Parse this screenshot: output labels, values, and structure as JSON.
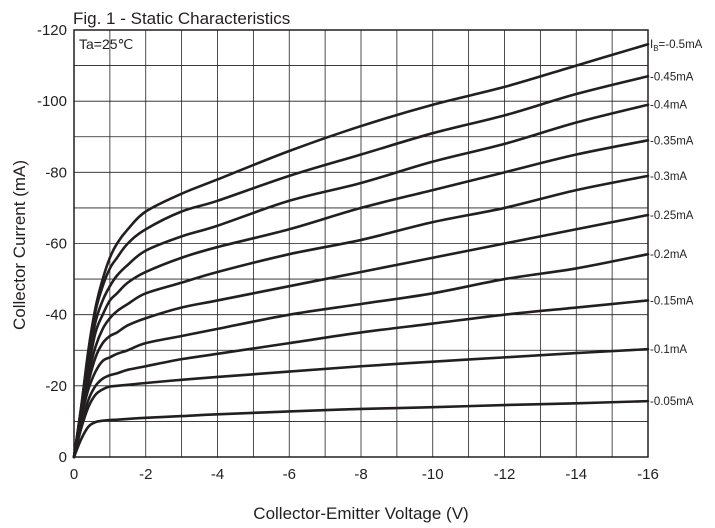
{
  "chart_data": {
    "type": "line",
    "title": "Fig. 1 - Static Characteristics",
    "xlabel": "Collector-Emitter Voltage (V)",
    "ylabel": "Collector  Current (mA)",
    "annotation": "Ta=25℃",
    "xlim": [
      0,
      -16
    ],
    "ylim": [
      0,
      -120
    ],
    "x_ticks": [
      0,
      -2,
      -4,
      -6,
      -8,
      -10,
      -12,
      -14,
      -16
    ],
    "y_ticks": [
      0,
      -20,
      -40,
      -60,
      -80,
      -100,
      -120
    ],
    "grid": true,
    "series": [
      {
        "name": "IB=-0.5mA",
        "label_main": "I",
        "label_sub": "B",
        "label_rest": "=-0.5mA",
        "x": [
          0,
          -0.2,
          -0.4,
          -0.6,
          -0.8,
          -1,
          -1.2,
          -1.5,
          -2,
          -3,
          -4,
          -6,
          -8,
          -10,
          -12,
          -14,
          -16
        ],
        "y": [
          0,
          -14,
          -30,
          -42,
          -50,
          -56,
          -60,
          -64,
          -69,
          -74,
          -78,
          -86,
          -93,
          -99,
          -104,
          -110,
          -116
        ]
      },
      {
        "name": "-0.45mA",
        "x": [
          0,
          -0.2,
          -0.4,
          -0.6,
          -0.8,
          -1,
          -1.2,
          -1.5,
          -2,
          -3,
          -4,
          -6,
          -8,
          -10,
          -12,
          -14,
          -16
        ],
        "y": [
          0,
          -14,
          -29,
          -41,
          -48,
          -53,
          -56,
          -60,
          -64,
          -69,
          -72,
          -79,
          -85,
          -91,
          -96,
          -102,
          -107
        ]
      },
      {
        "name": "-0.4mA",
        "x": [
          0,
          -0.2,
          -0.4,
          -0.6,
          -0.8,
          -1,
          -1.2,
          -1.5,
          -2,
          -3,
          -4,
          -6,
          -8,
          -10,
          -12,
          -14,
          -16
        ],
        "y": [
          0,
          -13,
          -27,
          -38,
          -44,
          -48,
          -51,
          -54,
          -58,
          -62,
          -65,
          -72,
          -77,
          -83,
          -88,
          -94,
          -99
        ]
      },
      {
        "name": "-0.35mA",
        "x": [
          0,
          -0.2,
          -0.4,
          -0.6,
          -0.8,
          -1,
          -1.2,
          -1.5,
          -2,
          -3,
          -4,
          -6,
          -8,
          -10,
          -12,
          -14,
          -16
        ],
        "y": [
          0,
          -13,
          -25,
          -35,
          -40,
          -44,
          -46,
          -49,
          -52,
          -56,
          -59,
          -64,
          -70,
          -75,
          -80,
          -85,
          -89
        ]
      },
      {
        "name": "-0.3mA",
        "x": [
          0,
          -0.2,
          -0.4,
          -0.6,
          -0.8,
          -1,
          -1.2,
          -1.5,
          -2,
          -3,
          -4,
          -6,
          -8,
          -10,
          -12,
          -14,
          -16
        ],
        "y": [
          0,
          -12,
          -23,
          -31,
          -36,
          -39,
          -41,
          -43,
          -46,
          -49,
          -52,
          -57,
          -61,
          -66,
          -70,
          -75,
          -79
        ]
      },
      {
        "name": "-0.25mA",
        "x": [
          0,
          -0.2,
          -0.4,
          -0.6,
          -0.8,
          -1,
          -1.2,
          -1.5,
          -2,
          -3,
          -4,
          -6,
          -8,
          -10,
          -12,
          -14,
          -16
        ],
        "y": [
          0,
          -12,
          -21,
          -28,
          -32,
          -34,
          -35,
          -37,
          -39,
          -42,
          -44,
          -48,
          -52,
          -56,
          -60,
          -64,
          -68
        ]
      },
      {
        "name": "-0.2mA",
        "x": [
          0,
          -0.2,
          -0.4,
          -0.6,
          -0.8,
          -1,
          -1.2,
          -1.5,
          -2,
          -3,
          -4,
          -6,
          -8,
          -10,
          -12,
          -14,
          -16
        ],
        "y": [
          0,
          -11,
          -19,
          -24,
          -27,
          -28,
          -29,
          -30,
          -32,
          -34,
          -36,
          -40,
          -43,
          -46,
          -50,
          -53,
          -57
        ]
      },
      {
        "name": "-0.15mA",
        "x": [
          0,
          -0.2,
          -0.4,
          -0.6,
          -0.8,
          -1,
          -1.2,
          -1.5,
          -2,
          -3,
          -4,
          -6,
          -8,
          -10,
          -12,
          -14,
          -16
        ],
        "y": [
          0,
          -9,
          -16,
          -20,
          -22,
          -23,
          -23.5,
          -24.5,
          -25.5,
          -27.5,
          -29,
          -32,
          -35,
          -37.5,
          -40,
          -42,
          -44
        ]
      },
      {
        "name": "-0.1mA",
        "x": [
          0,
          -0.2,
          -0.4,
          -0.6,
          -0.8,
          -1,
          -1.2,
          -1.5,
          -2,
          -3,
          -4,
          -6,
          -8,
          -10,
          -12,
          -14,
          -16
        ],
        "y": [
          0,
          -8,
          -14,
          -17.5,
          -19,
          -19.8,
          -20,
          -20.3,
          -20.8,
          -21.7,
          -22.5,
          -24,
          -25.5,
          -26.8,
          -28,
          -29.2,
          -30.3
        ]
      },
      {
        "name": "-0.05mA",
        "x": [
          0,
          -0.2,
          -0.4,
          -0.6,
          -0.8,
          -1,
          -1.2,
          -1.5,
          -2,
          -3,
          -4,
          -6,
          -8,
          -10,
          -12,
          -14,
          -16
        ],
        "y": [
          0,
          -5,
          -8.5,
          -9.8,
          -10.2,
          -10.4,
          -10.5,
          -10.7,
          -11,
          -11.5,
          -12,
          -12.8,
          -13.5,
          -14,
          -14.6,
          -15.1,
          -15.7
        ]
      }
    ]
  }
}
